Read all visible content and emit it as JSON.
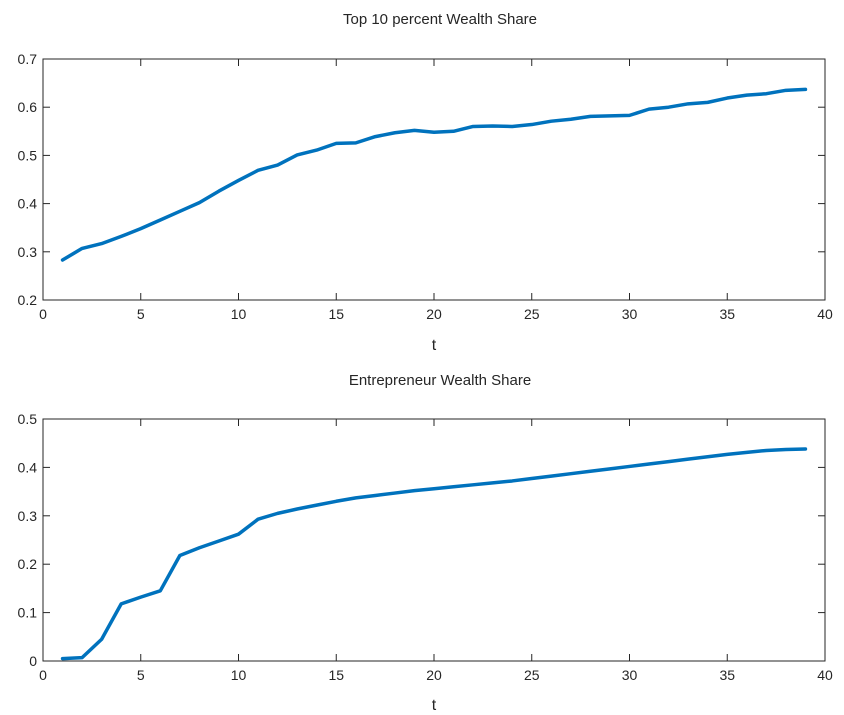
{
  "chart_data": [
    {
      "type": "line",
      "title": "Top 10 percent Wealth Share",
      "xlabel": "t",
      "ylabel": "",
      "xlim": [
        0,
        40
      ],
      "ylim": [
        0.2,
        0.7
      ],
      "xticks": [
        0,
        5,
        10,
        15,
        20,
        25,
        30,
        35,
        40
      ],
      "yticks": [
        0.2,
        0.3,
        0.4,
        0.5,
        0.6,
        0.7
      ],
      "xtick_labels": [
        "0",
        "5",
        "10",
        "15",
        "20",
        "25",
        "30",
        "35",
        "40"
      ],
      "ytick_labels": [
        "0.2",
        "0.3",
        "0.4",
        "0.5",
        "0.6",
        "0.7"
      ],
      "grid": false,
      "series": [
        {
          "color": "#0072BD",
          "x": [
            1,
            2,
            3,
            4,
            5,
            6,
            7,
            8,
            9,
            10,
            11,
            12,
            13,
            14,
            15,
            16,
            17,
            18,
            19,
            20,
            21,
            22,
            23,
            24,
            25,
            26,
            27,
            28,
            29,
            30,
            31,
            32,
            33,
            34,
            35,
            36,
            37,
            38,
            39
          ],
          "y": [
            0.283,
            0.307,
            0.317,
            0.332,
            0.348,
            0.366,
            0.384,
            0.402,
            0.426,
            0.448,
            0.469,
            0.48,
            0.501,
            0.511,
            0.525,
            0.526,
            0.539,
            0.547,
            0.552,
            0.548,
            0.55,
            0.56,
            0.561,
            0.56,
            0.564,
            0.571,
            0.575,
            0.581,
            0.582,
            0.583,
            0.596,
            0.6,
            0.607,
            0.61,
            0.619,
            0.625,
            0.628,
            0.635,
            0.637
          ]
        }
      ]
    },
    {
      "type": "line",
      "title": "Entrepreneur Wealth Share",
      "xlabel": "t",
      "ylabel": "",
      "xlim": [
        0,
        40
      ],
      "ylim": [
        0,
        0.5
      ],
      "xticks": [
        0,
        5,
        10,
        15,
        20,
        25,
        30,
        35,
        40
      ],
      "yticks": [
        0,
        0.1,
        0.2,
        0.3,
        0.4,
        0.5
      ],
      "xtick_labels": [
        "0",
        "5",
        "10",
        "15",
        "20",
        "25",
        "30",
        "35",
        "40"
      ],
      "ytick_labels": [
        "0",
        "0.1",
        "0.2",
        "0.3",
        "0.4",
        "0.5"
      ],
      "grid": false,
      "series": [
        {
          "color": "#0072BD",
          "x": [
            1,
            2,
            3,
            4,
            5,
            6,
            7,
            8,
            9,
            10,
            11,
            12,
            13,
            14,
            15,
            16,
            17,
            18,
            19,
            20,
            21,
            22,
            23,
            24,
            25,
            26,
            27,
            28,
            29,
            30,
            31,
            32,
            33,
            34,
            35,
            36,
            37,
            38,
            39
          ],
          "y": [
            0.005,
            0.007,
            0.045,
            0.118,
            0.132,
            0.145,
            0.218,
            0.234,
            0.248,
            0.262,
            0.293,
            0.305,
            0.314,
            0.322,
            0.33,
            0.337,
            0.342,
            0.347,
            0.352,
            0.356,
            0.36,
            0.364,
            0.368,
            0.372,
            0.377,
            0.382,
            0.387,
            0.392,
            0.397,
            0.402,
            0.407,
            0.412,
            0.417,
            0.422,
            0.427,
            0.431,
            0.435,
            0.437,
            0.438
          ]
        }
      ]
    }
  ]
}
